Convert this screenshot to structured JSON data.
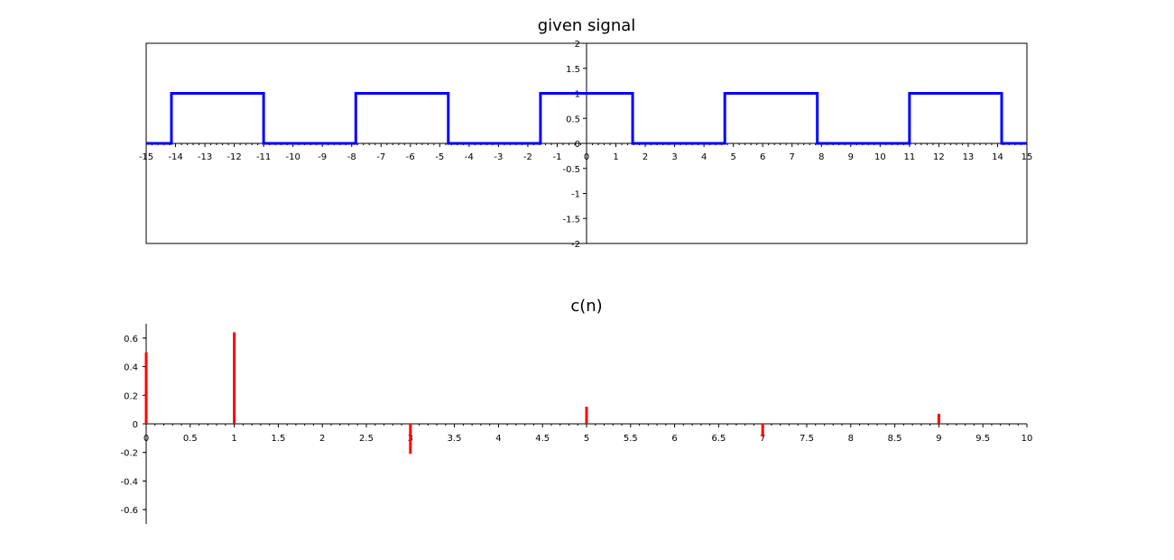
{
  "chart_data": [
    {
      "type": "line",
      "title": "given signal",
      "xlabel": "",
      "ylabel": "",
      "xlim": [
        -15,
        15
      ],
      "ylim": [
        -2,
        2
      ],
      "xticks": [
        -15,
        -14,
        -13,
        -12,
        -11,
        -10,
        -9,
        -8,
        -7,
        -6,
        -5,
        -4,
        -3,
        -2,
        -1,
        0,
        1,
        2,
        3,
        4,
        5,
        6,
        7,
        8,
        9,
        10,
        11,
        12,
        13,
        14,
        15
      ],
      "yticks": [
        -2,
        -1.5,
        -1,
        -0.5,
        0,
        0.5,
        1,
        1.5,
        2
      ],
      "ytick_labels": [
        "-2",
        "-1.5",
        "-1",
        "-0.5",
        "0",
        "0.5",
        "1",
        "1.5",
        "2"
      ],
      "grid": false,
      "series": [
        {
          "color": "#0000ff",
          "x": [
            -15,
            -14.14,
            -14.14,
            -11.0,
            -11.0,
            -7.86,
            -7.86,
            -4.71,
            -4.71,
            -1.57,
            -1.57,
            1.57,
            1.57,
            4.71,
            4.71,
            7.86,
            7.86,
            11.0,
            11.0,
            14.14,
            14.14,
            15
          ],
          "y": [
            0,
            0,
            1,
            1,
            0,
            0,
            1,
            1,
            0,
            0,
            1,
            1,
            0,
            0,
            1,
            1,
            0,
            0,
            1,
            1,
            0,
            0
          ]
        }
      ]
    },
    {
      "type": "stem",
      "title": "c(n)",
      "xlabel": "",
      "ylabel": "",
      "xlim": [
        0,
        10
      ],
      "ylim": [
        -0.7,
        0.7
      ],
      "xticks": [
        0,
        0.5,
        1,
        1.5,
        2,
        2.5,
        3,
        3.5,
        4,
        4.5,
        5,
        5.5,
        6,
        6.5,
        7,
        7.5,
        8,
        8.5,
        9,
        9.5,
        10
      ],
      "yticks": [
        -0.6,
        -0.4,
        -0.2,
        0,
        0.2,
        0.4,
        0.6
      ],
      "ytick_labels": [
        "-0.6",
        "-0.4",
        "-0.2",
        "0",
        "0.2",
        "0.4",
        "0.6"
      ],
      "grid": false,
      "series": [
        {
          "color": "#ff0000",
          "x": [
            0,
            1,
            3,
            5,
            7,
            9
          ],
          "y": [
            0.5,
            0.64,
            -0.21,
            0.12,
            -0.09,
            0.07
          ]
        }
      ]
    }
  ]
}
